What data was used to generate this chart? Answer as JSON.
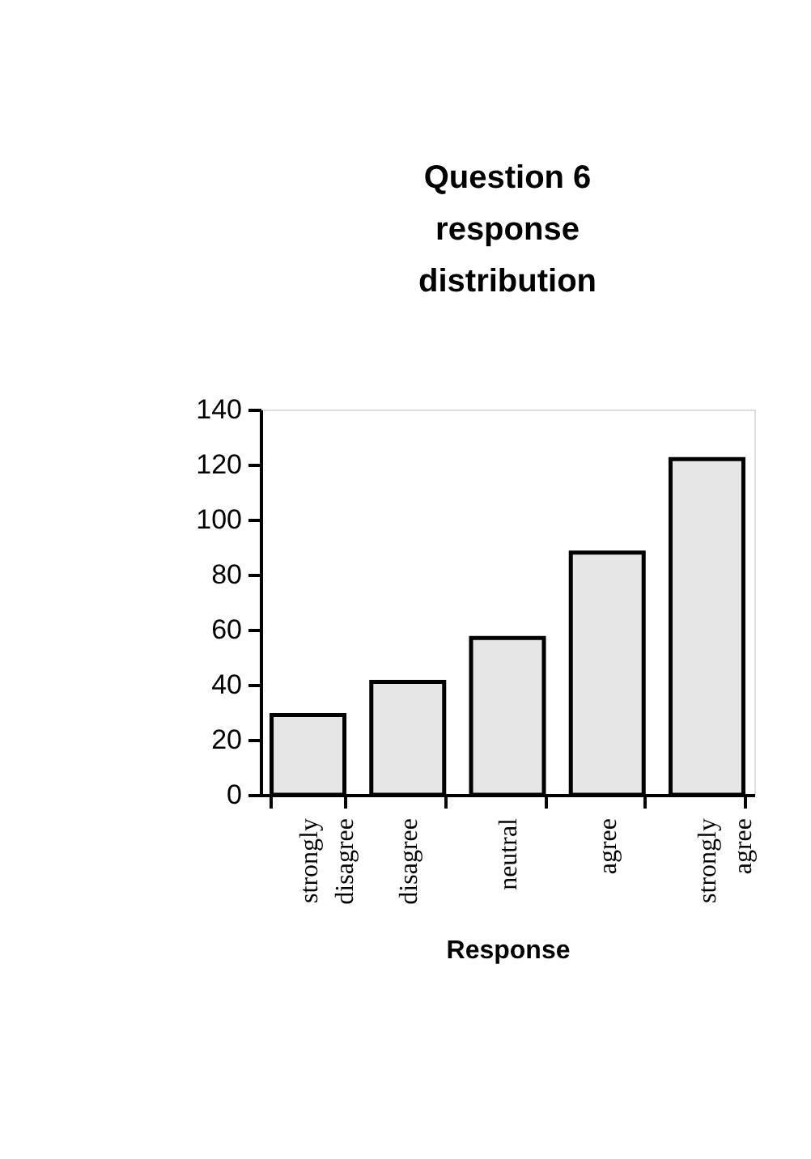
{
  "chart_data": {
    "type": "bar",
    "title": "Question 6 response distribution",
    "xlabel": "Response",
    "categories": [
      "strongly disagree",
      "disagree",
      "neutral",
      "agree",
      "strongly agree"
    ],
    "values": [
      29,
      41,
      57,
      88,
      122
    ],
    "color": "#e6e6e6",
    "ylim": [
      0,
      140
    ],
    "yticks": [
      0,
      20,
      40,
      60,
      80,
      100,
      120,
      140
    ],
    "grid": false
  }
}
